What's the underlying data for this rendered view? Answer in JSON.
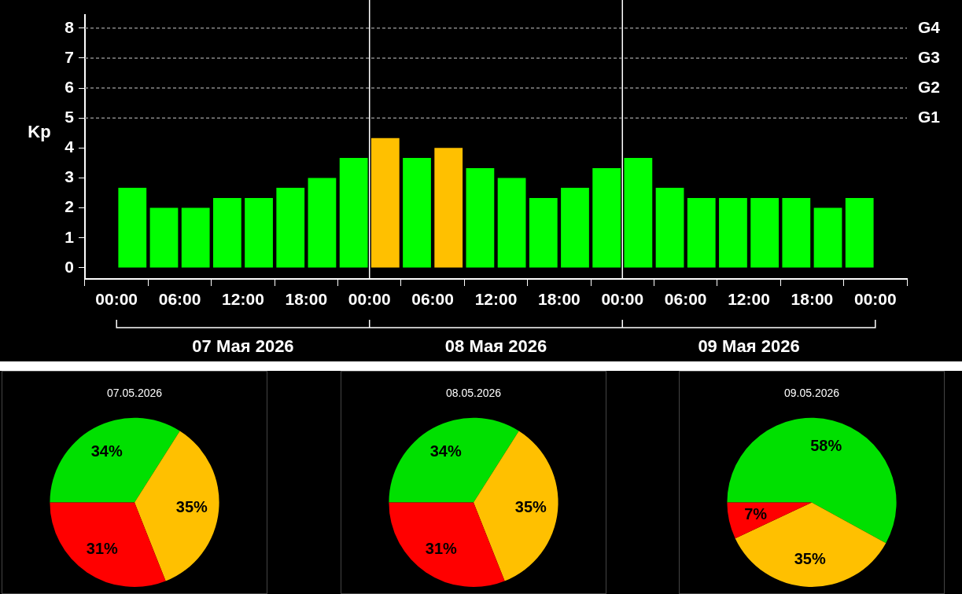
{
  "chart_data": [
    {
      "type": "bar",
      "ylabel": "Kp",
      "x": [
        "2026-05-07T01:30",
        "2026-05-07T04:30",
        "2026-05-07T07:30",
        "2026-05-07T10:30",
        "2026-05-07T13:30",
        "2026-05-07T16:30",
        "2026-05-07T19:30",
        "2026-05-07T22:30",
        "2026-05-08T01:30",
        "2026-05-08T04:30",
        "2026-05-08T07:30",
        "2026-05-08T10:30",
        "2026-05-08T13:30",
        "2026-05-08T16:30",
        "2026-05-08T19:30",
        "2026-05-08T22:30",
        "2026-05-09T01:30",
        "2026-05-09T04:30",
        "2026-05-09T07:30",
        "2026-05-09T10:30",
        "2026-05-09T13:30",
        "2026-05-09T16:30",
        "2026-05-09T19:30",
        "2026-05-09T22:30"
      ],
      "values": [
        2.67,
        2,
        2,
        2.33,
        2.33,
        2.67,
        3,
        3.67,
        4.33,
        3.67,
        4,
        3.33,
        3,
        2.33,
        2.67,
        3.33,
        3.67,
        2.67,
        2.33,
        2.33,
        2.33,
        2.33,
        2,
        2.33
      ],
      "colors": [
        "#00ff00",
        "#00ff00",
        "#00ff00",
        "#00ff00",
        "#00ff00",
        "#00ff00",
        "#00ff00",
        "#00ff00",
        "#ffc000",
        "#00ff00",
        "#ffc000",
        "#00ff00",
        "#00ff00",
        "#00ff00",
        "#00ff00",
        "#00ff00",
        "#00ff00",
        "#00ff00",
        "#00ff00",
        "#00ff00",
        "#00ff00",
        "#00ff00",
        "#00ff00",
        "#00ff00"
      ],
      "xlim": [
        "2026-05-07T00:00",
        "2026-05-10T00:00"
      ],
      "xticks": [
        {
          "value": "2026-05-07T00:00",
          "label": "00:00"
        },
        {
          "value": "2026-05-07T06:00",
          "label": "06:00"
        },
        {
          "value": "2026-05-07T12:00",
          "label": "12:00"
        },
        {
          "value": "2026-05-07T18:00",
          "label": "18:00"
        },
        {
          "value": "2026-05-08T00:00",
          "label": "00:00"
        },
        {
          "value": "2026-05-08T06:00",
          "label": "06:00"
        },
        {
          "value": "2026-05-08T12:00",
          "label": "12:00"
        },
        {
          "value": "2026-05-08T18:00",
          "label": "18:00"
        },
        {
          "value": "2026-05-09T00:00",
          "label": "00:00"
        },
        {
          "value": "2026-05-09T06:00",
          "label": "06:00"
        },
        {
          "value": "2026-05-09T12:00",
          "label": "12:00"
        },
        {
          "value": "2026-05-09T18:00",
          "label": "18:00"
        },
        {
          "value": "2026-05-10T00:00",
          "label": "00:00"
        }
      ],
      "ylim": [
        -0.37,
        8.45
      ],
      "yticks": [
        0,
        1,
        2,
        3,
        4,
        5,
        6,
        7,
        8
      ],
      "ref_lines": [
        {
          "axis": "x",
          "value": "2026-05-08T00:00",
          "color": "#ffffff"
        },
        {
          "axis": "x",
          "value": "2026-05-09T00:00",
          "color": "#ffffff"
        },
        {
          "axis": "y",
          "value": 5,
          "label": "G1",
          "color": "#888888",
          "line_style": "dashed"
        },
        {
          "axis": "y",
          "value": 6,
          "label": "G2",
          "color": "#888888",
          "line_style": "dashed"
        },
        {
          "axis": "y",
          "value": 7,
          "label": "G3",
          "color": "#888888",
          "line_style": "dashed"
        },
        {
          "axis": "y",
          "value": 8,
          "label": "G4",
          "color": "#888888",
          "line_style": "dashed"
        }
      ],
      "annotations": [
        "07 Мая 2026",
        "08 Мая 2026",
        "09 Мая 2026"
      ]
    },
    {
      "type": "pie",
      "title": "07.05.2026",
      "categories": [
        null,
        null,
        null
      ],
      "values": [
        34,
        35,
        31
      ],
      "colors": [
        "#00e000",
        "#ffc000",
        "#ff0000"
      ],
      "value_labels": [
        "34%",
        "35%",
        "31%"
      ]
    },
    {
      "type": "pie",
      "title": "08.05.2026",
      "categories": [
        null,
        null,
        null
      ],
      "values": [
        34,
        35,
        31
      ],
      "colors": [
        "#00e000",
        "#ffc000",
        "#ff0000"
      ],
      "value_labels": [
        "34%",
        "35%",
        "31%"
      ]
    },
    {
      "type": "pie",
      "title": "09.05.2026",
      "categories": [
        null,
        null,
        null
      ],
      "values": [
        58,
        35,
        7
      ],
      "colors": [
        "#00e000",
        "#ffc000",
        "#ff0000"
      ],
      "value_labels": [
        "58%",
        "35%",
        "7%"
      ]
    }
  ]
}
